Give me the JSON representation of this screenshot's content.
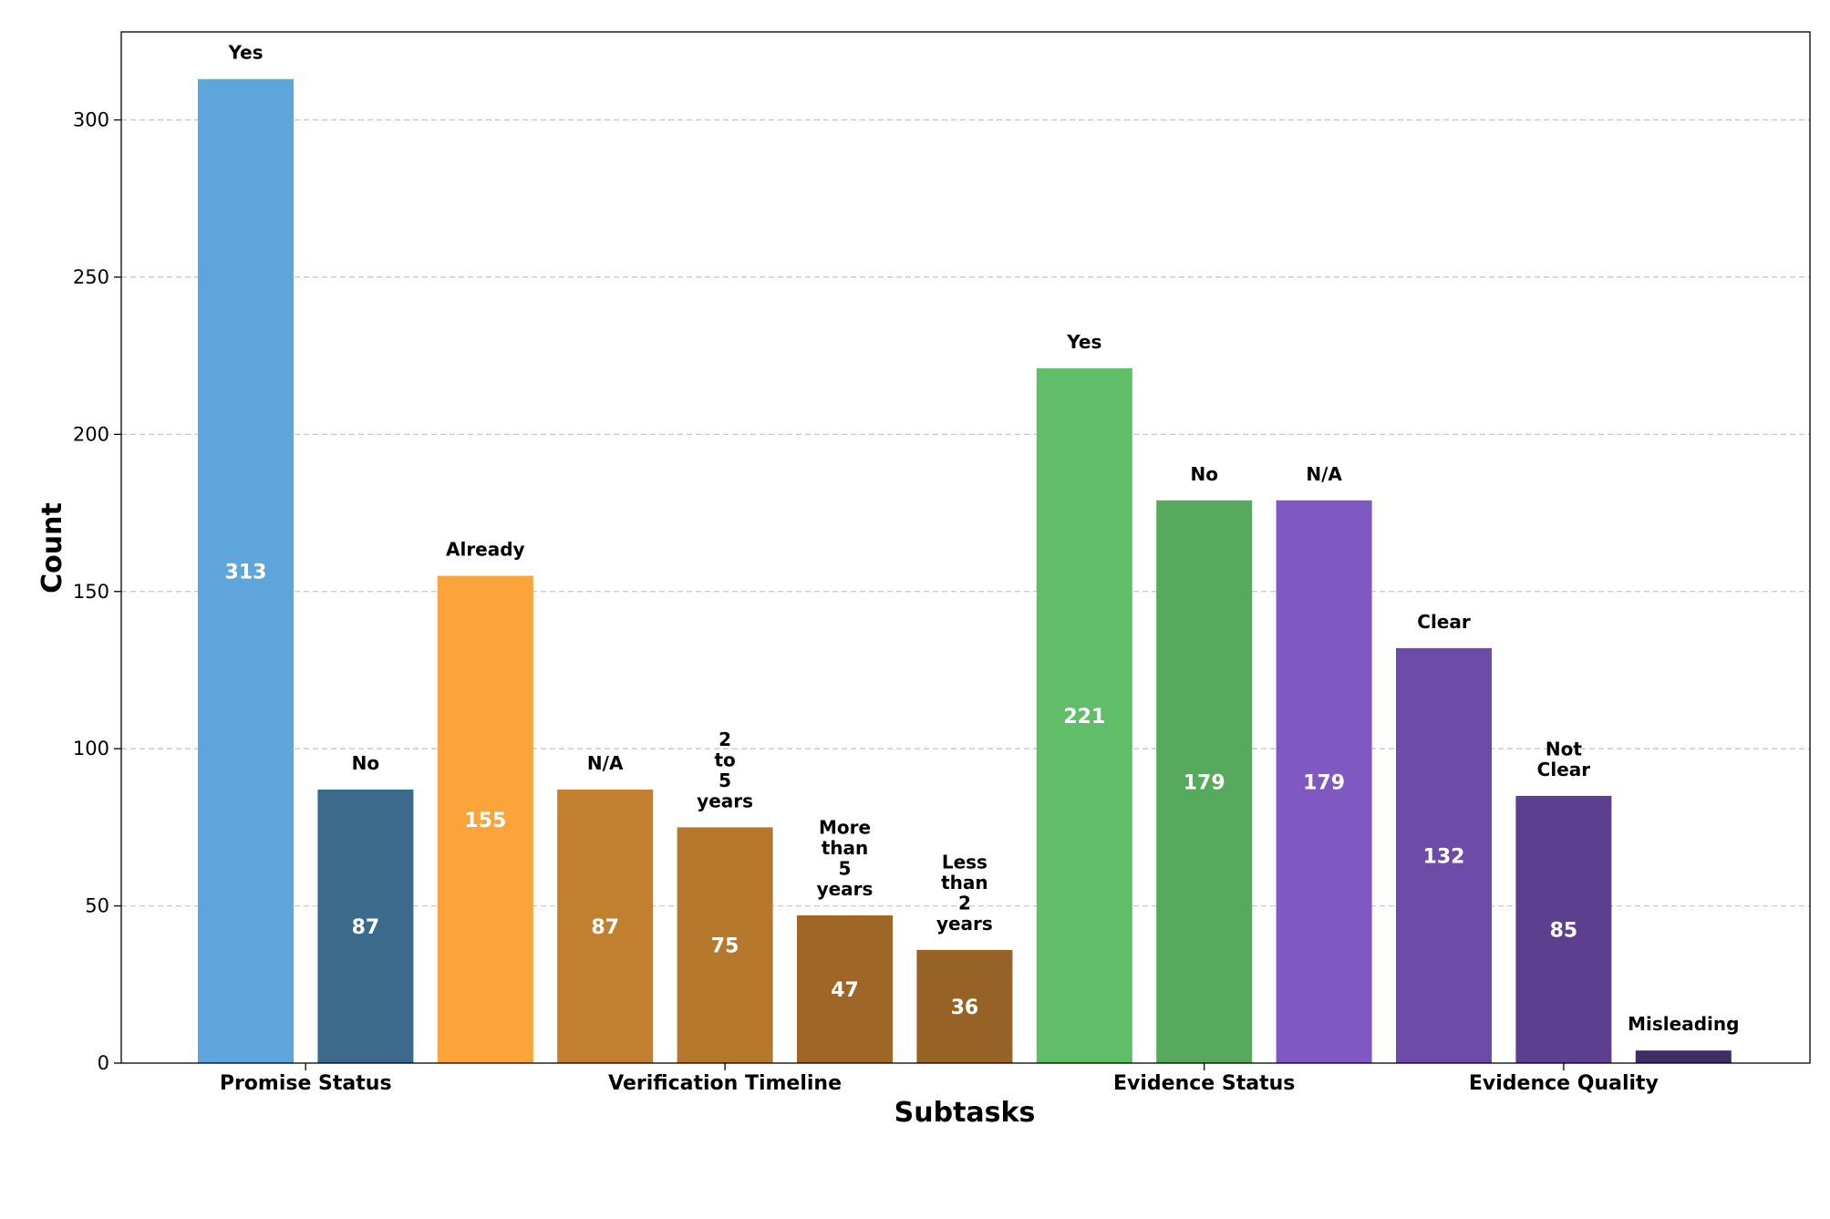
{
  "chart_data": {
    "type": "bar",
    "title": "",
    "xlabel": "Subtasks",
    "ylabel": "Count",
    "ylim": [
      0,
      328
    ],
    "yticks": [
      0,
      50,
      100,
      150,
      200,
      250,
      300
    ],
    "grid": true,
    "groups": [
      "Promise Status",
      "Verification Timeline",
      "Evidence Status",
      "Evidence Quality"
    ],
    "bars": [
      {
        "group": "Promise Status",
        "category": "Yes",
        "value": 313,
        "color": "#5DA5DA"
      },
      {
        "group": "Promise Status",
        "category": "No",
        "value": 87,
        "color": "#3B6A8C"
      },
      {
        "group": "Verification Timeline",
        "category": "Already",
        "value": 155,
        "color": "#FAA43A"
      },
      {
        "group": "Verification Timeline",
        "category": "N/A",
        "value": 87,
        "color": "#C27F2F"
      },
      {
        "group": "Verification Timeline",
        "category": "2\nto\n5\nyears",
        "value": 75,
        "color": "#B5782C"
      },
      {
        "group": "Verification Timeline",
        "category": "More\nthan\n5\nyears",
        "value": 47,
        "color": "#A06628"
      },
      {
        "group": "Verification Timeline",
        "category": "Less\nthan\n2\nyears",
        "value": 36,
        "color": "#966226"
      },
      {
        "group": "Evidence Status",
        "category": "Yes",
        "value": 221,
        "color": "#60BD68"
      },
      {
        "group": "Evidence Status",
        "category": "No",
        "value": 179,
        "color": "#57A95E"
      },
      {
        "group": "Evidence Status",
        "category": "N/A",
        "value": 179,
        "color": "#7F58C2"
      },
      {
        "group": "Evidence Quality",
        "category": "Clear",
        "value": 132,
        "color": "#6D4BA8"
      },
      {
        "group": "Evidence Quality",
        "category": "Not\nClear",
        "value": 85,
        "color": "#5C3F8E"
      },
      {
        "group": "Evidence Quality",
        "category": "Misleading",
        "value": 4,
        "color": "#3F2C62"
      }
    ]
  }
}
